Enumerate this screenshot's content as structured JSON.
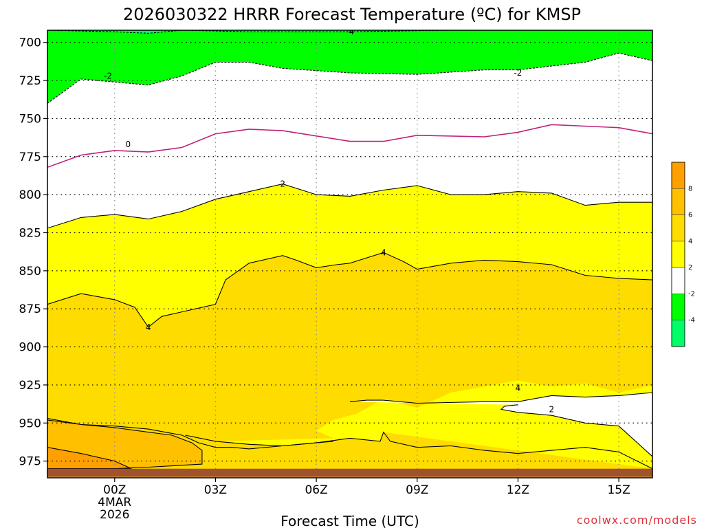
{
  "chart_data": {
    "type": "heatmap",
    "title": "2026030322 HRRR Forecast Temperature (ºC) for KMSP",
    "xlabel": "Forecast Time (UTC)",
    "ylabel": "",
    "credit": "coolwx.com/models",
    "x_ticks": [
      {
        "hour": 0,
        "lines": [
          "00Z",
          "4MAR",
          "2026"
        ]
      },
      {
        "hour": 3,
        "lines": [
          "03Z"
        ]
      },
      {
        "hour": 6,
        "lines": [
          "06Z"
        ]
      },
      {
        "hour": 9,
        "lines": [
          "09Z"
        ]
      },
      {
        "hour": 12,
        "lines": [
          "12Z"
        ]
      },
      {
        "hour": 15,
        "lines": [
          "15Z"
        ]
      }
    ],
    "xlim": [
      -2,
      16
    ],
    "y_ticks": [
      700,
      725,
      750,
      775,
      800,
      825,
      850,
      875,
      900,
      925,
      950,
      975
    ],
    "ylim_hpa": [
      692,
      986
    ],
    "ground_pressure_hpa": 980,
    "colorbar": {
      "labels": [
        "8",
        "6",
        "4",
        "2",
        "-2",
        "-4"
      ],
      "bands": [
        {
          "from": 10,
          "to": 8,
          "color": "#ffa000"
        },
        {
          "from": 8,
          "to": 6,
          "color": "#ffc000"
        },
        {
          "from": 6,
          "to": 4,
          "color": "#ffdc00"
        },
        {
          "from": 4,
          "to": 2,
          "color": "#ffff00"
        },
        {
          "from": 2,
          "to": -2,
          "color": "#ffffff"
        },
        {
          "from": -2,
          "to": -4,
          "color": "#00ff00"
        },
        {
          "from": -4,
          "to": -6,
          "color": "#00ff66"
        }
      ]
    },
    "colors": {
      "minus4": "#00ff66",
      "minus2": "#00ff00",
      "zero_band": "#ffffff",
      "plus2": "#ffff00",
      "plus4": "#ffdc00",
      "plus6": "#ffc000",
      "plus8": "#ffa000",
      "ground": "#a0522d",
      "zero_line": "#c0207a"
    },
    "contours": [
      {
        "level": -4,
        "label": "-4",
        "points": [
          [
            -2,
            692
          ],
          [
            0,
            693
          ],
          [
            1,
            694
          ],
          [
            2,
            692
          ],
          [
            4,
            693
          ],
          [
            7,
            693
          ],
          [
            10,
            692
          ],
          [
            16,
            692
          ]
        ]
      },
      {
        "level": -2,
        "label": "-2",
        "points": [
          [
            -2,
            740
          ],
          [
            -1,
            724
          ],
          [
            0,
            726
          ],
          [
            1,
            728
          ],
          [
            2,
            722
          ],
          [
            3,
            713
          ],
          [
            4,
            713
          ],
          [
            5,
            717
          ],
          [
            7,
            720
          ],
          [
            9,
            721
          ],
          [
            11,
            718
          ],
          [
            12,
            718
          ],
          [
            14,
            713
          ],
          [
            15,
            707
          ],
          [
            16,
            712
          ]
        ]
      },
      {
        "level": 0,
        "label": "0",
        "points": [
          [
            -2,
            782
          ],
          [
            -1,
            774
          ],
          [
            0,
            771
          ],
          [
            1,
            772
          ],
          [
            2,
            769
          ],
          [
            3,
            760
          ],
          [
            4,
            757
          ],
          [
            5,
            758
          ],
          [
            7,
            765
          ],
          [
            8,
            765
          ],
          [
            9,
            761
          ],
          [
            11,
            762
          ],
          [
            12,
            759
          ],
          [
            13,
            754
          ],
          [
            14,
            755
          ],
          [
            15,
            756
          ],
          [
            16,
            760
          ]
        ]
      },
      {
        "level": 2,
        "label": "2",
        "points": [
          [
            -2,
            822
          ],
          [
            -1,
            815
          ],
          [
            0,
            813
          ],
          [
            1,
            816
          ],
          [
            2,
            811
          ],
          [
            3,
            803
          ],
          [
            4,
            798
          ],
          [
            5,
            793
          ],
          [
            6,
            800
          ],
          [
            7,
            801
          ],
          [
            8,
            797
          ],
          [
            9,
            794
          ],
          [
            10,
            800
          ],
          [
            11,
            800
          ],
          [
            12,
            798
          ],
          [
            13,
            799
          ],
          [
            14,
            807
          ],
          [
            15,
            805
          ],
          [
            16,
            805
          ]
        ]
      },
      {
        "level": 4,
        "label": "4",
        "points": [
          [
            -2,
            872
          ],
          [
            -1,
            865
          ],
          [
            0,
            869
          ],
          [
            0.6,
            874
          ],
          [
            1,
            887
          ],
          [
            1.4,
            880
          ],
          [
            2,
            877
          ],
          [
            3,
            872
          ],
          [
            3.3,
            856
          ],
          [
            4,
            845
          ],
          [
            5,
            840
          ],
          [
            5.4,
            843
          ],
          [
            6,
            848
          ],
          [
            6.6,
            846
          ],
          [
            7,
            845
          ],
          [
            8,
            838
          ],
          [
            8.6,
            844
          ],
          [
            9,
            849
          ],
          [
            10,
            845
          ],
          [
            11,
            843
          ],
          [
            12,
            844
          ],
          [
            13,
            846
          ],
          [
            14,
            853
          ],
          [
            15,
            855
          ],
          [
            16,
            856
          ]
        ]
      },
      {
        "level": 2,
        "label": "2",
        "points": [
          [
            7,
            936
          ],
          [
            7.5,
            935
          ],
          [
            8,
            935
          ],
          [
            9,
            937
          ],
          [
            11,
            936
          ],
          [
            12,
            936
          ],
          [
            13,
            932
          ],
          [
            14,
            933
          ],
          [
            15,
            932
          ],
          [
            16,
            930
          ],
          [
            16,
            972
          ],
          [
            15,
            952
          ],
          [
            14,
            950
          ],
          [
            13,
            945
          ],
          [
            12,
            943
          ],
          [
            11.5,
            941
          ],
          [
            11.6,
            939
          ],
          [
            12,
            938
          ]
        ]
      },
      {
        "level": 4,
        "label": "4",
        "points": [
          [
            2.1,
            958
          ],
          [
            3,
            962
          ],
          [
            4,
            964
          ],
          [
            5,
            965
          ],
          [
            6,
            963
          ],
          [
            7,
            960
          ],
          [
            7.9,
            962
          ],
          [
            8,
            956
          ],
          [
            8.2,
            962
          ],
          [
            9,
            966
          ],
          [
            10,
            965
          ],
          [
            11,
            968
          ],
          [
            12,
            970
          ],
          [
            13,
            968
          ],
          [
            14,
            966
          ],
          [
            15,
            969
          ],
          [
            16,
            980
          ]
        ]
      },
      {
        "level": 2,
        "label": "2",
        "points": [
          [
            -2,
            948
          ],
          [
            -1,
            951
          ],
          [
            0,
            952
          ],
          [
            1,
            954
          ],
          [
            1.5,
            956
          ],
          [
            2,
            958
          ],
          [
            2.5,
            963
          ],
          [
            3,
            966
          ],
          [
            3.5,
            966
          ],
          [
            4,
            967
          ],
          [
            5,
            965
          ],
          [
            6,
            963
          ],
          [
            6.5,
            962
          ]
        ]
      },
      {
        "level": 6,
        "label": "6",
        "points": [
          [
            -2,
            947
          ],
          [
            -1,
            951
          ],
          [
            0,
            953
          ],
          [
            1,
            956
          ],
          [
            1.7,
            958
          ],
          [
            2.3,
            963
          ],
          [
            2.6,
            968
          ],
          [
            2.6,
            977
          ],
          [
            1,
            979
          ],
          [
            0,
            980
          ],
          [
            -2,
            980
          ]
        ]
      },
      {
        "level": 8,
        "label": "8",
        "points": [
          [
            -2,
            966
          ],
          [
            -1,
            970
          ],
          [
            0,
            975
          ],
          [
            0.5,
            980
          ],
          [
            -2,
            980
          ]
        ]
      }
    ]
  }
}
